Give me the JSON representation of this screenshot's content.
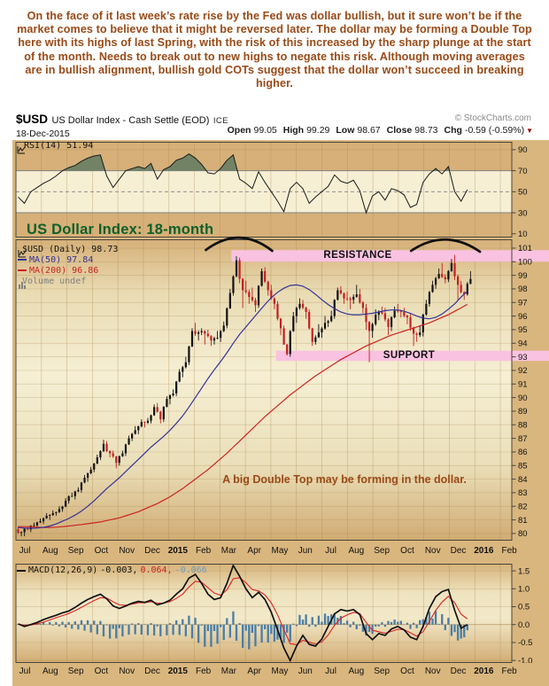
{
  "commentary": "On the face of it last week’s rate rise by the Fed was dollar bullish, but it sure won’t be if the market comes to believe that it might be reversed later. The dollar may be forming a Double Top here with its highs of last Spring, with the risk of this increased by the sharp plunge at the start of the month. Needs to break out to new highs to negate this risk. Although moving averages are in bullish alignment, bullish gold COTs suggest that the dollar won’t succeed in breaking higher.",
  "header": {
    "symbol": "$USD",
    "title": "US Dollar Index - Cash Settle (EOD)",
    "exchange": "ICE",
    "copyright": "© StockCharts.com",
    "date": "18-Dec-2015",
    "quote": [
      {
        "label": "Open",
        "value": "99.05"
      },
      {
        "label": "High",
        "value": "99.29"
      },
      {
        "label": "Low",
        "value": "98.67"
      },
      {
        "label": "Close",
        "value": "98.73"
      },
      {
        "label": "Chg",
        "value": "-0.59 (-0.59%)"
      }
    ]
  },
  "annotations": {
    "main_title": "US Dollar Index: 18-month",
    "resistance": "RESISTANCE",
    "support": "SUPPORT",
    "double_top_note": "A big Double Top may be forming in the dollar."
  },
  "legend": {
    "rsi": "RSI(14) 51.94",
    "usd": "$USD (Daily) 98.73",
    "ma50": "MA(50) 97.84",
    "ma200": "MA(200) 96.86",
    "volume": "Volume undef",
    "macd_label": "MACD(12,26,9)",
    "macd_v1": "-0.003,",
    "macd_v2": "0.064,",
    "macd_v3": "-0.066"
  },
  "axis": {
    "months": [
      "Jul",
      "Aug",
      "Sep",
      "Oct",
      "Nov",
      "Dec",
      "2015",
      "Feb",
      "Mar",
      "Apr",
      "May",
      "Jun",
      "Jul",
      "Aug",
      "Sep",
      "Oct",
      "Nov",
      "Dec",
      "2016",
      "Feb"
    ],
    "bold_indices": [
      6,
      18
    ],
    "span_months": 19.45,
    "price_ticks": [
      101,
      100,
      99,
      98,
      97,
      96,
      95,
      94,
      93,
      92,
      91,
      90,
      89,
      88,
      87,
      86,
      85,
      84,
      83,
      82,
      81,
      80
    ],
    "rsi_ticks": [
      90,
      70,
      50,
      30,
      10
    ],
    "macd_ticks": [
      "1.5",
      "1.0",
      "0.5",
      "0.0",
      "-0.5",
      "-1.0"
    ]
  },
  "colors": {
    "page_bg": "#ffffff",
    "commentary": "#9a4a16",
    "block_bg": "#d9b67e",
    "panel_tan": "#d6b078",
    "panel_cream": "#f6efd4",
    "grid": "#a8854d",
    "border": "#4a463c",
    "pink_band": "#f9c2e0",
    "title_green": "#0d5f2a",
    "candle_up": "#111111",
    "candle_down": "#c22020",
    "ma50": "#333399",
    "ma200": "#cc2222",
    "rsi_line": "#1a1a1a",
    "rsi_fill": "#6d8164",
    "macd_line": "#111111",
    "macd_signal": "#dd2222",
    "histogram": "#4a7da6",
    "copyright": "#8a8a8a"
  },
  "chart_data": [
    {
      "type": "line",
      "name": "RSI(14)",
      "last_value": 51.94,
      "ylim": [
        0,
        100
      ],
      "overbought": 70,
      "oversold": 30,
      "midline": 50,
      "values": [
        45,
        39,
        50,
        54,
        58,
        61,
        65,
        70,
        73,
        75,
        79,
        82,
        84,
        85,
        65,
        54,
        62,
        70,
        72,
        74,
        72,
        77,
        62,
        71,
        74,
        80,
        82,
        86,
        82,
        76,
        68,
        67,
        72,
        80,
        85,
        62,
        58,
        53,
        69,
        59,
        50,
        41,
        31,
        53,
        59,
        53,
        39,
        45,
        50,
        55,
        66,
        60,
        58,
        61,
        51,
        30,
        46,
        50,
        42,
        53,
        51,
        47,
        35,
        38,
        59,
        67,
        72,
        67,
        74,
        50,
        41,
        52
      ]
    },
    {
      "type": "candlestick",
      "name": "$USD (Daily)",
      "last_close": 98.73,
      "ylim": [
        79.47,
        101.65
      ],
      "x_start": "Jul-2014",
      "x_end": "18-Dec-2015",
      "weekly_ohlc": [
        [
          80.3,
          80.5,
          79.8,
          80.1
        ],
        [
          80.1,
          80.4,
          79.8,
          80.3
        ],
        [
          80.3,
          80.8,
          80.1,
          80.6
        ],
        [
          80.6,
          81.1,
          80.4,
          80.9
        ],
        [
          80.9,
          81.5,
          80.7,
          81.3
        ],
        [
          81.3,
          81.7,
          81.0,
          81.5
        ],
        [
          81.5,
          82.0,
          81.3,
          81.8
        ],
        [
          81.8,
          82.6,
          81.6,
          82.4
        ],
        [
          82.4,
          83.0,
          82.2,
          82.75
        ],
        [
          82.75,
          83.4,
          82.5,
          83.2
        ],
        [
          83.2,
          84.3,
          83.0,
          84.1
        ],
        [
          84.1,
          84.9,
          83.8,
          84.7
        ],
        [
          84.7,
          85.8,
          84.5,
          85.6
        ],
        [
          85.6,
          86.9,
          85.4,
          86.6
        ],
        [
          86.6,
          86.8,
          85.6,
          85.9
        ],
        [
          85.9,
          86.1,
          84.8,
          85.2
        ],
        [
          85.2,
          86.1,
          85.0,
          85.9
        ],
        [
          85.9,
          87.2,
          85.7,
          87.0
        ],
        [
          87.0,
          87.9,
          86.8,
          87.6
        ],
        [
          87.6,
          88.4,
          87.3,
          88.2
        ],
        [
          88.2,
          88.5,
          87.8,
          88.3
        ],
        [
          88.3,
          89.5,
          88.1,
          89.3
        ],
        [
          89.3,
          89.6,
          88.1,
          88.4
        ],
        [
          88.4,
          90.1,
          88.2,
          89.9
        ],
        [
          89.9,
          90.6,
          89.5,
          90.3
        ],
        [
          90.3,
          92.1,
          90.1,
          91.9
        ],
        [
          91.9,
          93.0,
          91.5,
          92.6
        ],
        [
          92.6,
          95.1,
          92.4,
          94.9
        ],
        [
          94.9,
          95.5,
          94.2,
          94.8
        ],
        [
          94.8,
          95.1,
          93.9,
          94.7
        ],
        [
          94.7,
          95.0,
          93.8,
          94.2
        ],
        [
          94.2,
          94.9,
          93.9,
          94.4
        ],
        [
          94.4,
          95.6,
          94.1,
          95.3
        ],
        [
          95.3,
          98.0,
          95.1,
          97.7
        ],
        [
          97.7,
          100.4,
          97.5,
          100.1
        ],
        [
          100.1,
          100.3,
          96.6,
          97.9
        ],
        [
          97.9,
          98.6,
          96.9,
          97.4
        ],
        [
          97.4,
          98.1,
          96.3,
          96.8
        ],
        [
          96.8,
          99.5,
          96.6,
          99.3
        ],
        [
          99.3,
          99.6,
          97.5,
          97.9
        ],
        [
          97.9,
          98.3,
          96.5,
          96.9
        ],
        [
          96.9,
          97.1,
          94.6,
          95.1
        ],
        [
          95.1,
          95.3,
          93.1,
          93.2
        ],
        [
          93.2,
          96.3,
          93.0,
          96.0
        ],
        [
          96.0,
          97.3,
          95.5,
          96.9
        ],
        [
          96.9,
          97.2,
          95.8,
          96.3
        ],
        [
          96.3,
          96.5,
          93.8,
          94.1
        ],
        [
          94.1,
          95.4,
          93.9,
          94.8
        ],
        [
          94.8,
          96.0,
          94.4,
          95.5
        ],
        [
          95.5,
          96.4,
          95.2,
          96.0
        ],
        [
          96.0,
          98.1,
          95.8,
          97.9
        ],
        [
          97.9,
          98.2,
          96.9,
          97.3
        ],
        [
          97.3,
          97.8,
          96.5,
          97.2
        ],
        [
          97.2,
          98.3,
          96.9,
          97.6
        ],
        [
          97.6,
          98.0,
          96.2,
          96.6
        ],
        [
          96.6,
          96.9,
          92.6,
          94.9
        ],
        [
          94.9,
          96.5,
          94.4,
          96.1
        ],
        [
          96.1,
          96.7,
          95.7,
          96.2
        ],
        [
          96.2,
          96.6,
          94.6,
          95.2
        ],
        [
          95.2,
          96.7,
          94.9,
          96.4
        ],
        [
          96.4,
          96.9,
          95.9,
          96.3
        ],
        [
          96.3,
          96.6,
          95.4,
          95.9
        ],
        [
          95.9,
          96.2,
          93.8,
          94.7
        ],
        [
          94.7,
          95.3,
          94.1,
          94.8
        ],
        [
          94.8,
          97.2,
          94.5,
          96.9
        ],
        [
          96.9,
          98.6,
          96.7,
          98.3
        ],
        [
          98.3,
          99.5,
          98.0,
          99.1
        ],
        [
          99.1,
          99.9,
          98.4,
          98.7
        ],
        [
          98.7,
          100.2,
          98.5,
          99.9
        ],
        [
          99.9,
          100.5,
          97.2,
          98.3
        ],
        [
          98.3,
          98.6,
          97.2,
          97.6
        ],
        [
          97.6,
          99.3,
          97.5,
          98.73
        ]
      ],
      "ma50": [
        80.45,
        80.4,
        80.38,
        80.4,
        80.45,
        80.55,
        80.7,
        80.9,
        81.1,
        81.35,
        81.65,
        82.0,
        82.4,
        82.85,
        83.3,
        83.7,
        84.1,
        84.55,
        85.0,
        85.45,
        85.9,
        86.35,
        86.75,
        87.15,
        87.6,
        88.1,
        88.65,
        89.3,
        90.0,
        90.7,
        91.4,
        92.05,
        92.65,
        93.3,
        94.0,
        94.65,
        95.2,
        95.75,
        96.3,
        96.85,
        97.35,
        97.75,
        98.05,
        98.25,
        98.3,
        98.2,
        97.95,
        97.6,
        97.2,
        96.85,
        96.55,
        96.3,
        96.15,
        96.1,
        96.1,
        96.15,
        96.2,
        96.3,
        96.4,
        96.45,
        96.45,
        96.35,
        96.2,
        96.0,
        95.85,
        95.8,
        95.9,
        96.15,
        96.5,
        96.9,
        97.4,
        97.84
      ],
      "ma200": [
        80.5,
        80.5,
        80.48,
        80.46,
        80.44,
        80.44,
        80.46,
        80.5,
        80.55,
        80.6,
        80.66,
        80.72,
        80.78,
        80.85,
        80.95,
        81.05,
        81.15,
        81.3,
        81.45,
        81.6,
        81.8,
        82.0,
        82.2,
        82.45,
        82.7,
        83.0,
        83.3,
        83.65,
        84.0,
        84.35,
        84.7,
        85.1,
        85.5,
        85.9,
        86.35,
        86.8,
        87.25,
        87.7,
        88.15,
        88.6,
        89.0,
        89.4,
        89.8,
        90.2,
        90.55,
        90.9,
        91.25,
        91.6,
        91.9,
        92.2,
        92.5,
        92.8,
        93.05,
        93.3,
        93.55,
        93.8,
        94.0,
        94.2,
        94.4,
        94.6,
        94.75,
        94.9,
        95.05,
        95.2,
        95.35,
        95.5,
        95.7,
        95.9,
        96.1,
        96.35,
        96.6,
        96.86
      ],
      "bands": [
        {
          "label": "RESISTANCE",
          "price_from": 100.0,
          "price_to": 100.85,
          "start_month": 8.45
        },
        {
          "label": "SUPPORT",
          "price_from": 92.7,
          "price_to": 93.45,
          "start_month": 10.2
        }
      ],
      "arcs": [
        {
          "from_month": 7.45,
          "to_month": 10.05
        },
        {
          "from_month": 15.5,
          "to_month": 18.2
        }
      ]
    },
    {
      "type": "line+histogram",
      "name": "MACD(12,26,9)",
      "last_values": [
        -0.003,
        0.064,
        -0.066
      ],
      "ylim": [
        -1.07,
        1.7
      ],
      "macd": [
        0.02,
        -0.05,
        0.0,
        0.06,
        0.14,
        0.2,
        0.26,
        0.33,
        0.38,
        0.48,
        0.6,
        0.7,
        0.78,
        0.85,
        0.72,
        0.52,
        0.45,
        0.52,
        0.6,
        0.65,
        0.62,
        0.68,
        0.55,
        0.6,
        0.68,
        0.85,
        1.0,
        1.3,
        1.4,
        1.15,
        0.85,
        0.7,
        0.75,
        1.15,
        1.65,
        1.35,
        1.0,
        0.75,
        0.9,
        0.7,
        0.35,
        -0.15,
        -0.65,
        -1.0,
        -0.6,
        -0.3,
        -0.55,
        -0.6,
        -0.4,
        -0.05,
        0.3,
        0.42,
        0.38,
        0.42,
        0.28,
        -0.25,
        -0.42,
        -0.25,
        -0.3,
        -0.12,
        -0.05,
        -0.15,
        -0.35,
        -0.42,
        -0.05,
        0.45,
        0.78,
        0.92,
        0.98,
        0.4,
        -0.1,
        0.0
      ],
      "signal": [
        0.01,
        -0.02,
        -0.01,
        0.02,
        0.07,
        0.13,
        0.19,
        0.25,
        0.31,
        0.39,
        0.48,
        0.58,
        0.67,
        0.75,
        0.74,
        0.64,
        0.55,
        0.54,
        0.57,
        0.61,
        0.61,
        0.64,
        0.6,
        0.6,
        0.64,
        0.73,
        0.85,
        1.05,
        1.21,
        1.18,
        1.03,
        0.88,
        0.82,
        0.97,
        1.28,
        1.31,
        1.17,
        0.98,
        0.94,
        0.83,
        0.61,
        0.27,
        -0.14,
        -0.53,
        -0.56,
        -0.44,
        -0.49,
        -0.54,
        -0.48,
        -0.29,
        -0.02,
        0.18,
        0.27,
        0.34,
        0.31,
        0.06,
        -0.16,
        -0.2,
        -0.24,
        -0.19,
        -0.13,
        -0.14,
        -0.23,
        -0.32,
        -0.2,
        0.09,
        0.4,
        0.63,
        0.79,
        0.61,
        0.29,
        0.16
      ]
    }
  ]
}
